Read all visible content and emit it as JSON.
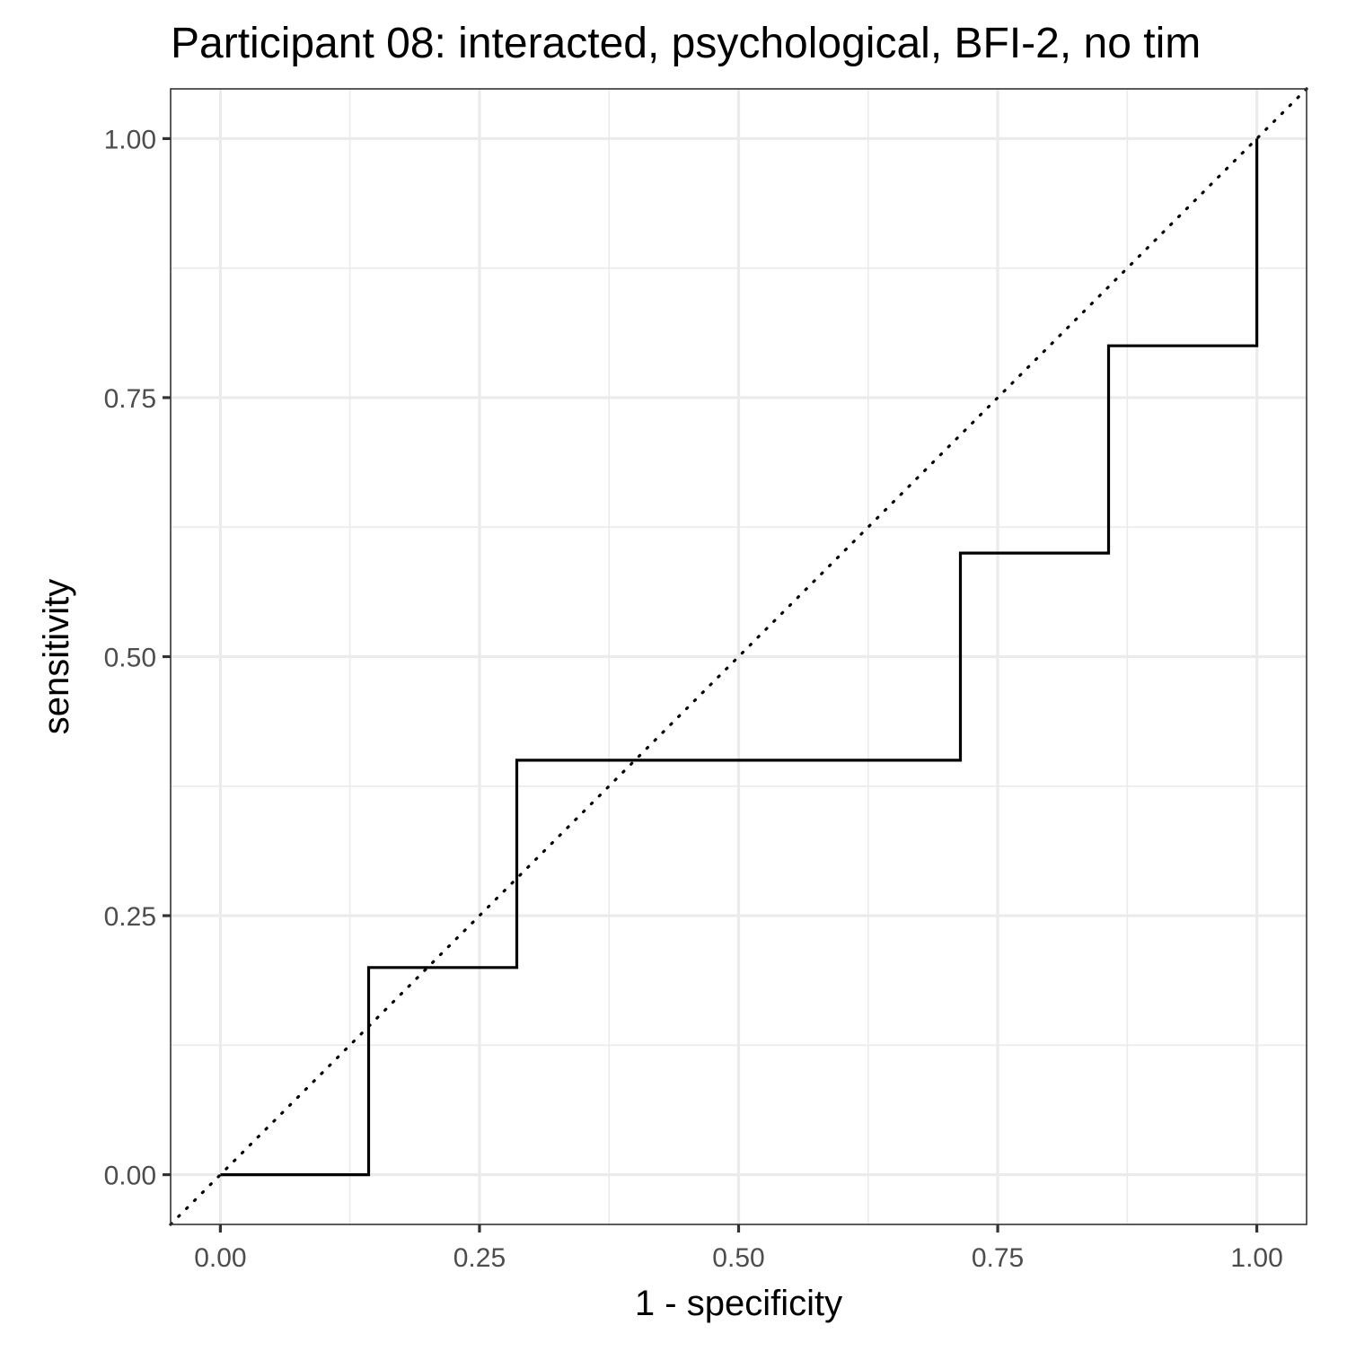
{
  "chart_data": {
    "type": "line",
    "title": "Participant 08: interacted, psychological, BFI-2, no tim",
    "xlabel": "1 - specificity",
    "ylabel": "sensitivity",
    "xlim": [
      -0.048,
      1.048
    ],
    "ylim": [
      -0.048,
      1.048
    ],
    "x_ticks": [
      0,
      0.25,
      0.5,
      0.75,
      1
    ],
    "y_ticks": [
      0,
      0.25,
      0.5,
      0.75,
      1
    ],
    "x_tick_labels": [
      "0.00",
      "0.25",
      "0.50",
      "0.75",
      "1.00"
    ],
    "y_tick_labels": [
      "0.00",
      "0.25",
      "0.50",
      "0.75",
      "1.00"
    ],
    "grid": true,
    "legend": "none",
    "series": [
      {
        "style": "step",
        "color": "#000000",
        "x": [
          0,
          0.143,
          0.143,
          0.286,
          0.286,
          0.714,
          0.714,
          0.857,
          0.857,
          1,
          1
        ],
        "y": [
          0,
          0,
          0.2,
          0.2,
          0.4,
          0.4,
          0.6,
          0.6,
          0.8,
          0.8,
          1
        ]
      },
      {
        "style": "dotted",
        "color": "#000000",
        "x": [
          -0.048,
          1.048
        ],
        "y": [
          -0.048,
          1.048
        ]
      }
    ]
  }
}
